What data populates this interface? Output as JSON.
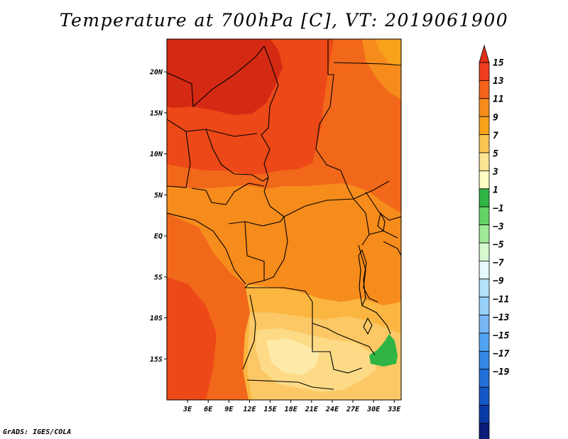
{
  "title": "Temperature at 700hPa [C], VT: 2019061900",
  "credit": "GrADS: IGES/COLA",
  "map": {
    "lon_range": [
      0,
      34
    ],
    "lat_range": [
      -20,
      24
    ],
    "lat_ticks": [
      {
        "label": "20N",
        "value": 20
      },
      {
        "label": "15N",
        "value": 15
      },
      {
        "label": "10N",
        "value": 10
      },
      {
        "label": "5N",
        "value": 5
      },
      {
        "label": "EQ",
        "value": 0
      },
      {
        "label": "5S",
        "value": -5
      },
      {
        "label": "10S",
        "value": -10
      },
      {
        "label": "15S",
        "value": -15
      }
    ],
    "lon_ticks": [
      {
        "label": "3E",
        "value": 3
      },
      {
        "label": "6E",
        "value": 6
      },
      {
        "label": "9E",
        "value": 9
      },
      {
        "label": "12E",
        "value": 12
      },
      {
        "label": "15E",
        "value": 15
      },
      {
        "label": "18E",
        "value": 18
      },
      {
        "label": "21E",
        "value": 21
      },
      {
        "label": "24E",
        "value": 24
      },
      {
        "label": "27E",
        "value": 27
      },
      {
        "label": "30E",
        "value": 30
      },
      {
        "label": "33E",
        "value": 33
      }
    ]
  },
  "colorbar": {
    "bins": [
      {
        "color": "#f03c1e"
      },
      {
        "color": "#f5641a"
      },
      {
        "color": "#f68c1b"
      },
      {
        "color": "#f8a21c"
      },
      {
        "color": "#fbc650"
      },
      {
        "color": "#fde494"
      },
      {
        "color": "#fefdc4"
      },
      {
        "color": "#30b545"
      },
      {
        "color": "#64d467"
      },
      {
        "color": "#a0eb98"
      },
      {
        "color": "#d6f8cf"
      },
      {
        "color": "#e6f9fc"
      },
      {
        "color": "#b4e2fa"
      },
      {
        "color": "#96d0f8"
      },
      {
        "color": "#78b6f4"
      },
      {
        "color": "#50a3f0"
      },
      {
        "color": "#3488e6"
      },
      {
        "color": "#2270d8"
      },
      {
        "color": "#1458c8"
      },
      {
        "color": "#0a3aa6"
      },
      {
        "color": "#0a1b78"
      }
    ],
    "top_arrow_color": "#e0311a",
    "bottom_arrow_color": "#dde6fa",
    "labels": [
      "15",
      "13",
      "11",
      "9",
      "7",
      "5",
      "3",
      "1",
      "−1",
      "−3",
      "−5",
      "−7",
      "−9",
      "−11",
      "−13",
      "−15",
      "−17",
      "−19"
    ]
  },
  "field_colors": {
    "t16": "#d42a14",
    "t14": "#ec4818",
    "t12": "#f2681a",
    "t10": "#f68c1c",
    "t9": "#f8a21c",
    "t8": "#fab640",
    "t7": "#fcc866",
    "t6": "#fdda86",
    "t5": "#feeaa8",
    "green": "#30b545"
  }
}
